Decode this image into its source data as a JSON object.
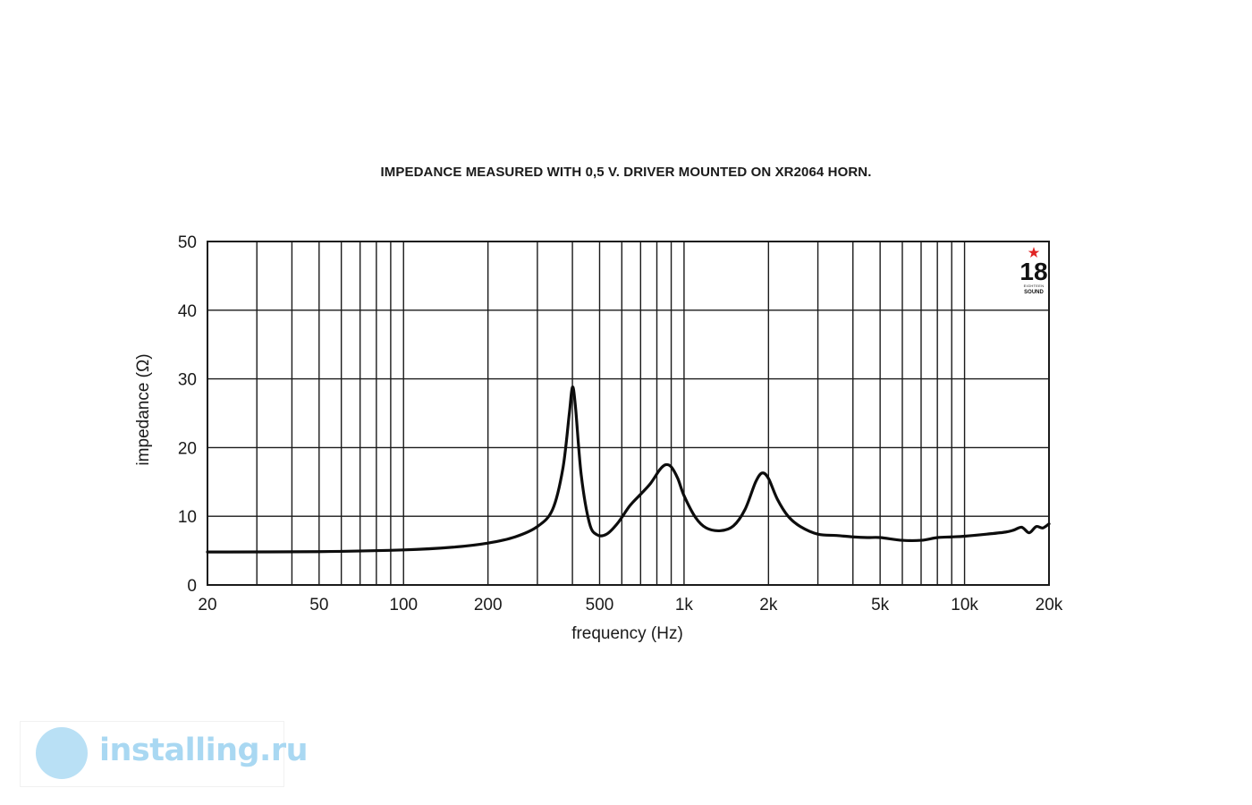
{
  "chart_data": {
    "type": "line",
    "title": "IMPEDANCE MEASURED WITH 0,5 V. DRIVER MOUNTED ON XR2064 HORN.",
    "xlabel": "frequency (Hz)",
    "ylabel": "impedance (Ω)",
    "xscale": "log",
    "xlim": [
      20,
      20000
    ],
    "ylim": [
      0,
      50
    ],
    "grid": true,
    "x_gridlines": [
      30,
      40,
      50,
      60,
      70,
      80,
      90,
      100,
      200,
      300,
      400,
      500,
      600,
      700,
      800,
      900,
      1000,
      2000,
      3000,
      4000,
      5000,
      6000,
      7000,
      8000,
      9000,
      10000
    ],
    "y_ticks": [
      0,
      10,
      20,
      30,
      40,
      50
    ],
    "y_tick_labels": [
      "0",
      "10",
      "20",
      "30",
      "40",
      "50"
    ],
    "x_ticks": [
      20,
      50,
      100,
      200,
      500,
      1000,
      2000,
      5000,
      10000,
      20000
    ],
    "x_tick_labels": [
      "20",
      "50",
      "100",
      "200",
      "500",
      "1k",
      "2k",
      "5k",
      "10k",
      "20k"
    ],
    "series": [
      {
        "x": [
          20,
          50,
          100,
          150,
          200,
          250,
          300,
          340,
          370,
          390,
          400,
          410,
          430,
          460,
          490,
          530,
          580,
          640,
          700,
          760,
          820,
          860,
          900,
          950,
          1000,
          1100,
          1200,
          1350,
          1500,
          1650,
          1800,
          1900,
          2000,
          2150,
          2350,
          2600,
          3000,
          3500,
          4000,
          4500,
          5000,
          6000,
          7000,
          8000,
          9000,
          10000,
          12000,
          14000,
          15000,
          16000,
          17000,
          18000,
          19000,
          20000
        ],
        "y": [
          4.8,
          4.85,
          5.1,
          5.5,
          6.1,
          7.0,
          8.5,
          11.0,
          17.0,
          25.0,
          28.8,
          26.0,
          16.0,
          9.0,
          7.3,
          7.4,
          9.0,
          11.5,
          13.2,
          14.8,
          16.8,
          17.5,
          17.2,
          15.5,
          13.0,
          9.8,
          8.3,
          7.9,
          8.6,
          11.0,
          15.0,
          16.3,
          15.5,
          12.5,
          10.0,
          8.5,
          7.4,
          7.2,
          7.0,
          6.9,
          6.9,
          6.5,
          6.5,
          6.9,
          7.0,
          7.1,
          7.4,
          7.7,
          8.0,
          8.4,
          7.6,
          8.5,
          8.3,
          8.9
        ]
      }
    ]
  },
  "logo": {
    "number": "18",
    "line1": "EIGHTEEN",
    "line2": "SOUND",
    "star_color": "#e02424"
  },
  "watermark": {
    "text": "installing.ru",
    "color": "#a9d8f2"
  }
}
